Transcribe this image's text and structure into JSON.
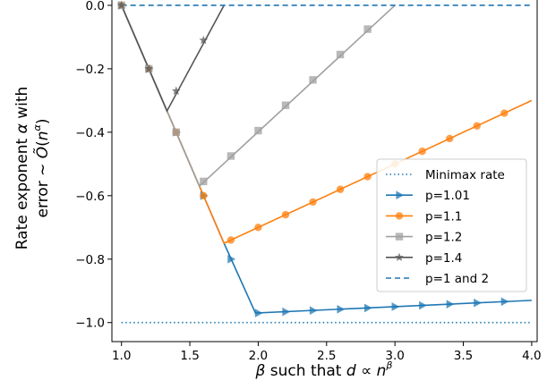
{
  "chart_data": {
    "type": "line",
    "xlabel_parts": {
      "a": "β",
      "b": " such that ",
      "c": "d",
      "d": " ∝ ",
      "e": "n",
      "f": "β"
    },
    "ylabel_line1_parts": {
      "a": "Rate exponent ",
      "b": "α",
      "c": " with"
    },
    "ylabel_line2_parts": {
      "a": "error ~ ",
      "b": "Õ",
      "c": "(",
      "d": "n",
      "e": "α",
      "f": ")"
    },
    "xlim": [
      0.93,
      4.04
    ],
    "ylim": [
      -1.06,
      0.045
    ],
    "xticks": [
      {
        "value": 1.0,
        "label": "1.0"
      },
      {
        "value": 1.5,
        "label": "1.5"
      },
      {
        "value": 2.0,
        "label": "2.0"
      },
      {
        "value": 2.5,
        "label": "2.5"
      },
      {
        "value": 3.0,
        "label": "3.0"
      },
      {
        "value": 3.5,
        "label": "3.5"
      },
      {
        "value": 4.0,
        "label": "4.0"
      }
    ],
    "yticks": [
      {
        "value": 0.0,
        "label": "0.0"
      },
      {
        "value": -0.2,
        "label": "−0.2"
      },
      {
        "value": -0.4,
        "label": "−0.4"
      },
      {
        "value": -0.6,
        "label": "−0.6"
      },
      {
        "value": -0.8,
        "label": "−0.8"
      },
      {
        "value": -1.0,
        "label": "−1.0"
      }
    ],
    "legend_position": "center-right",
    "grid": false,
    "series": [
      {
        "name": "Minimax rate",
        "color": "#1f77b4",
        "line_style": "dotted",
        "marker": "none",
        "line": [
          [
            1.0,
            -1.0
          ],
          [
            4.0,
            -1.0
          ]
        ],
        "markers": []
      },
      {
        "name": "p=1.01",
        "color": "#1f77b4",
        "line_style": "solid",
        "marker": "triangle-right",
        "line": [
          [
            1.0,
            0.0
          ],
          [
            1.75,
            -0.75
          ],
          [
            1.98,
            -0.97
          ],
          [
            4.0,
            -0.93
          ]
        ],
        "markers": [
          [
            1.0,
            0.0
          ],
          [
            1.2,
            -0.2
          ],
          [
            1.4,
            -0.4
          ],
          [
            1.6,
            -0.6
          ],
          [
            1.8,
            -0.8
          ],
          [
            2.0,
            -0.97
          ],
          [
            2.2,
            -0.966
          ],
          [
            2.4,
            -0.962
          ],
          [
            2.6,
            -0.958
          ],
          [
            2.8,
            -0.954
          ],
          [
            3.0,
            -0.95
          ],
          [
            3.2,
            -0.946
          ],
          [
            3.4,
            -0.942
          ],
          [
            3.6,
            -0.938
          ],
          [
            3.8,
            -0.934
          ]
        ]
      },
      {
        "name": "p=1.1",
        "color": "#ff7f0e",
        "line_style": "solid",
        "marker": "circle",
        "line": [
          [
            1.0,
            0.0
          ],
          [
            1.75,
            -0.75
          ],
          [
            4.0,
            -0.3
          ]
        ],
        "markers": [
          [
            1.0,
            0.0
          ],
          [
            1.2,
            -0.2
          ],
          [
            1.4,
            -0.4
          ],
          [
            1.6,
            -0.6
          ],
          [
            1.8,
            -0.74
          ],
          [
            2.0,
            -0.7
          ],
          [
            2.2,
            -0.66
          ],
          [
            2.4,
            -0.62
          ],
          [
            2.6,
            -0.58
          ],
          [
            2.8,
            -0.54
          ],
          [
            3.0,
            -0.5
          ],
          [
            3.2,
            -0.46
          ],
          [
            3.4,
            -0.42
          ],
          [
            3.6,
            -0.38
          ],
          [
            3.8,
            -0.34
          ]
        ]
      },
      {
        "name": "p=1.2",
        "color": "#a0a0a0",
        "line_style": "solid",
        "marker": "square",
        "line": [
          [
            1.0,
            0.0
          ],
          [
            1.57,
            -0.57
          ],
          [
            3.0,
            0.0
          ]
        ],
        "markers": [
          [
            1.0,
            0.0
          ],
          [
            1.2,
            -0.2
          ],
          [
            1.4,
            -0.4
          ],
          [
            1.6,
            -0.555
          ],
          [
            1.8,
            -0.475
          ],
          [
            2.0,
            -0.395
          ],
          [
            2.2,
            -0.315
          ],
          [
            2.4,
            -0.235
          ],
          [
            2.6,
            -0.155
          ],
          [
            2.8,
            -0.075
          ]
        ]
      },
      {
        "name": "p=1.4",
        "color": "#555555",
        "line_style": "solid",
        "marker": "star",
        "line": [
          [
            1.0,
            0.0
          ],
          [
            1.333,
            -0.333
          ],
          [
            1.75,
            0.0
          ]
        ],
        "markers": [
          [
            1.0,
            0.0
          ],
          [
            1.2,
            -0.2
          ],
          [
            1.4,
            -0.27
          ],
          [
            1.6,
            -0.11
          ]
        ]
      },
      {
        "name": "p=1 and 2",
        "color": "#1f77b4",
        "line_style": "dashed",
        "marker": "none",
        "line": [
          [
            1.0,
            0.0
          ],
          [
            4.0,
            0.0
          ]
        ],
        "markers": []
      }
    ]
  }
}
